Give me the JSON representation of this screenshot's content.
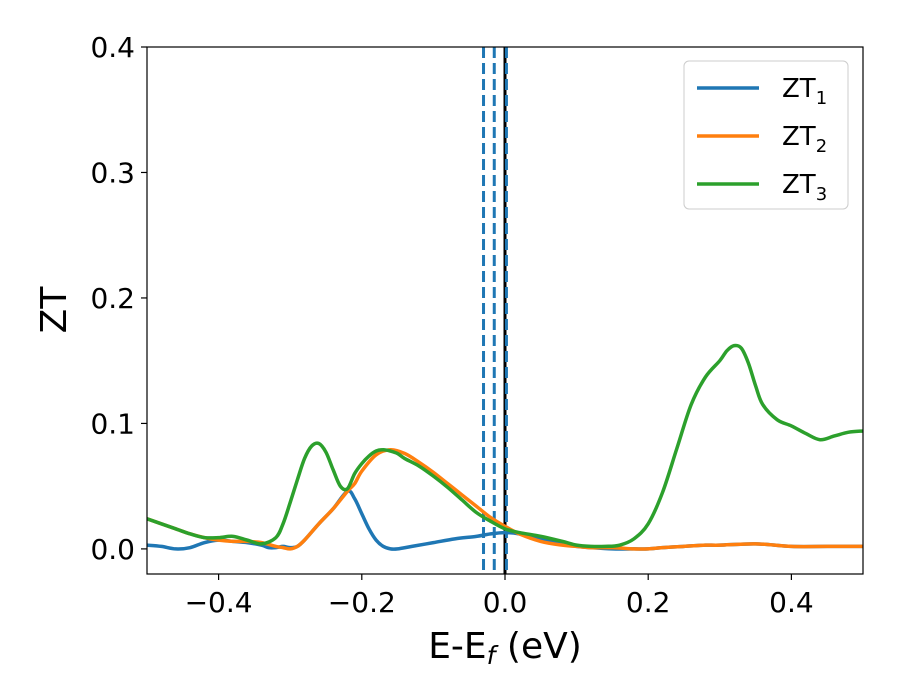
{
  "chart_data": {
    "type": "line",
    "title": "",
    "xlabel": "E-E",
    "xlabel_sub": "f",
    "xlabel_unit": " (eV)",
    "ylabel": "ZT",
    "xlim": [
      -0.5,
      0.5
    ],
    "ylim": [
      -0.02,
      0.4
    ],
    "xticks": [
      -0.4,
      -0.2,
      0.0,
      0.2,
      0.4
    ],
    "xtick_labels": [
      "−0.4",
      "−0.2",
      "0.0",
      "0.2",
      "0.4"
    ],
    "yticks": [
      0.0,
      0.1,
      0.2,
      0.3,
      0.4
    ],
    "ytick_labels": [
      "0.0",
      "0.1",
      "0.2",
      "0.3",
      "0.4"
    ],
    "grid": false,
    "legend_position": "top-right",
    "vlines": [
      {
        "x": -0.03,
        "style": "dashed",
        "color": "#1f77b4"
      },
      {
        "x": -0.015,
        "style": "dashed",
        "color": "#1f77b4"
      },
      {
        "x": 0.0,
        "style": "solid",
        "color": "#000000"
      },
      {
        "x": 0.002,
        "style": "dashed",
        "color": "#1f77b4"
      }
    ],
    "series": [
      {
        "name": "ZT",
        "sub": "1",
        "color": "#1f77b4",
        "x": [
          -0.5,
          -0.48,
          -0.46,
          -0.44,
          -0.42,
          -0.4,
          -0.38,
          -0.36,
          -0.34,
          -0.33,
          -0.32,
          -0.31,
          -0.3,
          -0.29,
          -0.28,
          -0.26,
          -0.24,
          -0.22,
          -0.21,
          -0.2,
          -0.19,
          -0.18,
          -0.17,
          -0.16,
          -0.15,
          -0.13,
          -0.1,
          -0.07,
          -0.04,
          -0.02,
          0.0,
          0.02,
          0.05,
          0.08,
          0.1,
          0.12,
          0.15,
          0.18,
          0.2,
          0.22,
          0.25,
          0.28,
          0.3,
          0.35,
          0.4,
          0.45,
          0.5
        ],
        "y": [
          0.003,
          0.002,
          0.0,
          0.001,
          0.005,
          0.007,
          0.006,
          0.005,
          0.003,
          0.001,
          0.001,
          0.002,
          0.001,
          0.002,
          0.007,
          0.02,
          0.032,
          0.046,
          0.04,
          0.028,
          0.016,
          0.007,
          0.002,
          0.0,
          0.0,
          0.002,
          0.005,
          0.008,
          0.01,
          0.012,
          0.013,
          0.012,
          0.008,
          0.004,
          0.002,
          0.001,
          0.0,
          0.0,
          0.0,
          0.001,
          0.002,
          0.003,
          0.003,
          0.004,
          0.002,
          0.002,
          0.002
        ]
      },
      {
        "name": "ZT",
        "sub": "2",
        "color": "#ff7f0e",
        "x": [
          -0.5,
          -0.48,
          -0.46,
          -0.44,
          -0.42,
          -0.4,
          -0.38,
          -0.36,
          -0.34,
          -0.32,
          -0.31,
          -0.3,
          -0.29,
          -0.28,
          -0.26,
          -0.24,
          -0.22,
          -0.21,
          -0.2,
          -0.18,
          -0.16,
          -0.14,
          -0.12,
          -0.1,
          -0.08,
          -0.06,
          -0.04,
          -0.02,
          0.0,
          0.02,
          0.05,
          0.08,
          0.1,
          0.12,
          0.15,
          0.18,
          0.2,
          0.22,
          0.25,
          0.28,
          0.3,
          0.35,
          0.4,
          0.45,
          0.5
        ],
        "y": [
          0.024,
          0.02,
          0.016,
          0.012,
          0.009,
          0.007,
          0.006,
          0.006,
          0.005,
          0.002,
          0.001,
          0.0,
          0.002,
          0.007,
          0.02,
          0.032,
          0.046,
          0.052,
          0.062,
          0.075,
          0.079,
          0.076,
          0.069,
          0.061,
          0.052,
          0.043,
          0.034,
          0.025,
          0.018,
          0.012,
          0.006,
          0.003,
          0.002,
          0.001,
          0.001,
          0.0,
          0.0,
          0.001,
          0.002,
          0.003,
          0.003,
          0.004,
          0.002,
          0.002,
          0.002
        ]
      },
      {
        "name": "ZT",
        "sub": "3",
        "color": "#2ca02c",
        "x": [
          -0.5,
          -0.48,
          -0.46,
          -0.44,
          -0.42,
          -0.4,
          -0.38,
          -0.36,
          -0.34,
          -0.32,
          -0.31,
          -0.3,
          -0.29,
          -0.28,
          -0.27,
          -0.26,
          -0.25,
          -0.24,
          -0.23,
          -0.22,
          -0.21,
          -0.2,
          -0.19,
          -0.18,
          -0.17,
          -0.16,
          -0.15,
          -0.14,
          -0.12,
          -0.1,
          -0.08,
          -0.06,
          -0.04,
          -0.02,
          0.0,
          0.02,
          0.05,
          0.08,
          0.1,
          0.12,
          0.14,
          0.16,
          0.18,
          0.2,
          0.22,
          0.24,
          0.26,
          0.28,
          0.3,
          0.31,
          0.32,
          0.33,
          0.34,
          0.35,
          0.36,
          0.38,
          0.4,
          0.42,
          0.44,
          0.46,
          0.48,
          0.5
        ],
        "y": [
          0.024,
          0.02,
          0.016,
          0.012,
          0.009,
          0.009,
          0.01,
          0.007,
          0.004,
          0.009,
          0.02,
          0.037,
          0.055,
          0.072,
          0.082,
          0.084,
          0.077,
          0.063,
          0.05,
          0.048,
          0.06,
          0.068,
          0.074,
          0.078,
          0.079,
          0.078,
          0.076,
          0.072,
          0.066,
          0.058,
          0.049,
          0.039,
          0.029,
          0.022,
          0.016,
          0.013,
          0.01,
          0.006,
          0.003,
          0.002,
          0.002,
          0.003,
          0.008,
          0.02,
          0.045,
          0.08,
          0.115,
          0.137,
          0.15,
          0.158,
          0.162,
          0.16,
          0.148,
          0.13,
          0.115,
          0.103,
          0.098,
          0.092,
          0.087,
          0.09,
          0.093,
          0.094
        ]
      }
    ]
  }
}
